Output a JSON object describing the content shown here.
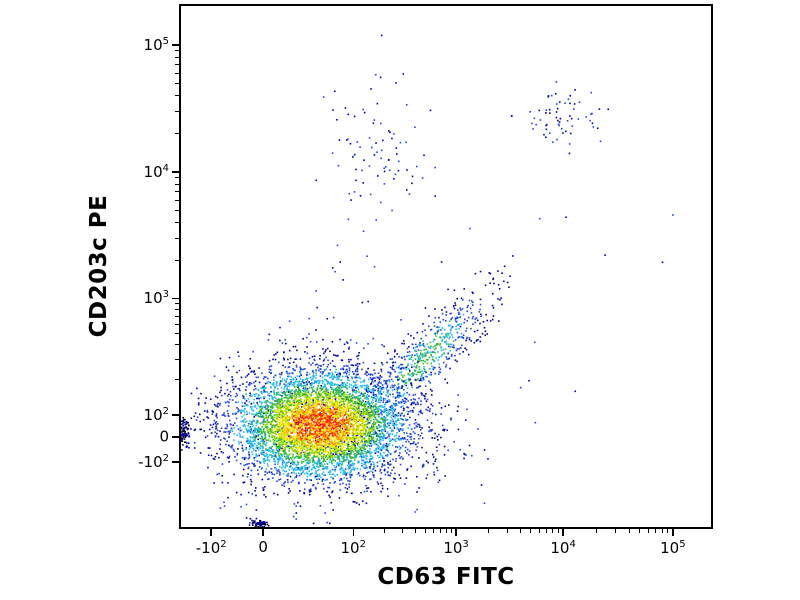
{
  "figure": {
    "background": "#ffffff",
    "frame_color": "#000000"
  },
  "chart_data": {
    "type": "scatter",
    "subtype": "flow-cytometry-density-dot-plot",
    "title": "",
    "xlabel": "CD63 FITC",
    "ylabel": "CD203c PE",
    "legend": "none",
    "grid": false,
    "x_axis": {
      "scale": "biexponential",
      "ticks": [
        {
          "base": "-10",
          "exp": "2",
          "frac": 0.057
        },
        {
          "base": "0",
          "exp": "",
          "frac": 0.155
        },
        {
          "base": "10",
          "exp": "2",
          "frac": 0.325
        },
        {
          "base": "10",
          "exp": "3",
          "frac": 0.519
        },
        {
          "base": "10",
          "exp": "4",
          "frac": 0.721
        },
        {
          "base": "10",
          "exp": "5",
          "frac": 0.928
        }
      ]
    },
    "y_axis": {
      "scale": "biexponential",
      "ticks": [
        {
          "base": "10",
          "exp": "5",
          "frac": 0.075
        },
        {
          "base": "10",
          "exp": "4",
          "frac": 0.319
        },
        {
          "base": "10",
          "exp": "3",
          "frac": 0.561
        },
        {
          "base": "10",
          "exp": "2",
          "frac": 0.785
        },
        {
          "base": "0",
          "exp": "",
          "frac": 0.827
        },
        {
          "base": "-10",
          "exp": "2",
          "frac": 0.875
        }
      ]
    },
    "palette": {
      "red": "#ff2200",
      "orange": "#ff9900",
      "yellow": "#ffe800",
      "yellowgreen": "#aadd00",
      "green": "#33bb33",
      "cyan": "#22bbee",
      "blue": "#2244dd",
      "darkblue": "#000099",
      "black": "#000000"
    },
    "populations": [
      {
        "name": "resting-basophil-fringe",
        "style": "blue",
        "count": 1000,
        "cx": 0.27,
        "cy": 0.805,
        "sx": 0.115,
        "sy": 0.072,
        "angle": 0
      },
      {
        "name": "activation-tail",
        "style": "tail",
        "count": 650,
        "cx": 0.46,
        "cy": 0.679,
        "sx": 0.09,
        "sy": 0.025,
        "angle": -47
      },
      {
        "name": "resting-basophil-core",
        "style": "heat",
        "count": 5200,
        "cx": 0.262,
        "cy": 0.804,
        "sx": 0.079,
        "sy": 0.05,
        "angle": 0
      },
      {
        "name": "cd203c-high-cluster",
        "style": "blue",
        "count": 85,
        "cx": 0.36,
        "cy": 0.276,
        "sx": 0.049,
        "sy": 0.077,
        "angle": 0
      },
      {
        "name": "double-positive-cluster",
        "style": "blue",
        "count": 65,
        "cx": 0.721,
        "cy": 0.209,
        "sx": 0.038,
        "sy": 0.031,
        "angle": 0
      },
      {
        "name": "bridge-scatter",
        "style": "blue",
        "count": 16,
        "cx": 0.3,
        "cy": 0.545,
        "sx": 0.03,
        "sy": 0.09,
        "angle": 0
      },
      {
        "name": "background-scatter",
        "style": "blue",
        "count": 22,
        "cx": 0.5,
        "cy": 0.45,
        "sx": 0.3,
        "sy": 0.3,
        "angle": 0
      },
      {
        "name": "left-axis-pileup",
        "style": "dark",
        "count": 90,
        "cx": 0.006,
        "cy": 0.818,
        "sx": 0.006,
        "sy": 0.014,
        "angle": 0
      },
      {
        "name": "bottom-axis-pileup",
        "style": "dark",
        "count": 60,
        "cx": 0.147,
        "cy": 0.994,
        "sx": 0.009,
        "sy": 0.004,
        "angle": 0
      }
    ],
    "seed": 42
  }
}
